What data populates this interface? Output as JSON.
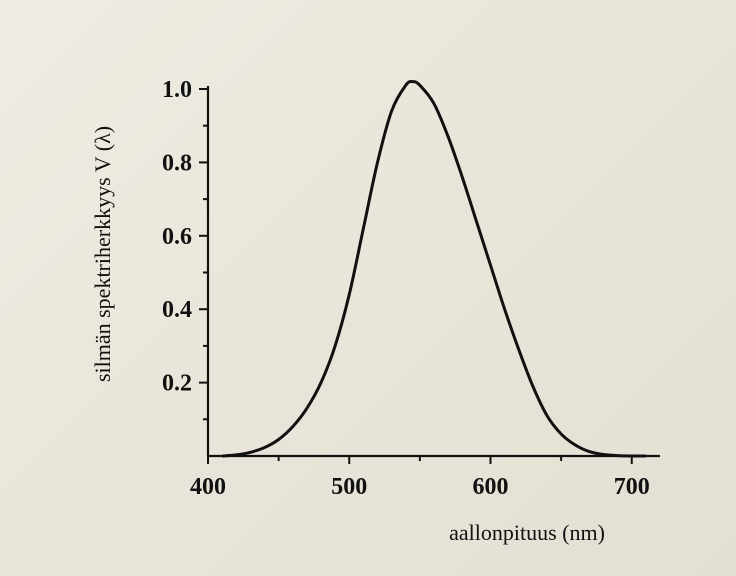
{
  "chart_data": {
    "type": "line",
    "xlabel": "aallonpituus (nm)",
    "ylabel": "silmän spektriherkkyys  V (λ)",
    "xlim": [
      400,
      720
    ],
    "ylim": [
      0,
      1.03
    ],
    "x_ticks": [
      400,
      500,
      600,
      700
    ],
    "x_tick_labels": [
      "400",
      "500",
      "600",
      "700"
    ],
    "y_ticks": [
      0.2,
      0.4,
      0.6,
      0.8,
      1.0
    ],
    "y_tick_labels": [
      "0.2",
      "0.4",
      "0.6",
      "0.8",
      "1.0"
    ],
    "grid": false,
    "series": [
      {
        "x": [
          410,
          420,
          430,
          440,
          450,
          460,
          470,
          480,
          490,
          500,
          510,
          520,
          530,
          540,
          545,
          550,
          560,
          570,
          580,
          590,
          600,
          610,
          620,
          630,
          640,
          650,
          660,
          670,
          680,
          690,
          700,
          710
        ],
        "values": [
          0.0,
          0.003,
          0.01,
          0.023,
          0.045,
          0.08,
          0.13,
          0.2,
          0.3,
          0.44,
          0.62,
          0.8,
          0.94,
          1.01,
          1.02,
          1.01,
          0.96,
          0.87,
          0.76,
          0.64,
          0.52,
          0.4,
          0.29,
          0.19,
          0.11,
          0.06,
          0.03,
          0.012,
          0.004,
          0.001,
          0.0,
          0.0
        ]
      }
    ]
  }
}
